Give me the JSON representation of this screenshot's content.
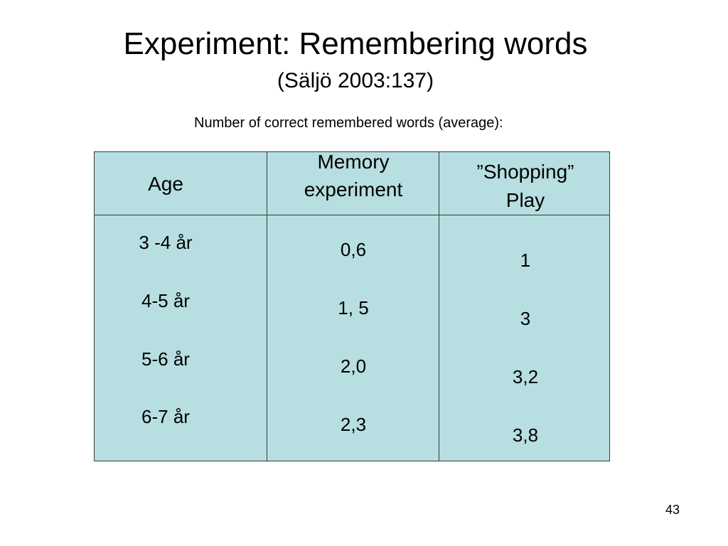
{
  "slide": {
    "title": "Experiment: Remembering words",
    "subtitle": "(Säljö 2003:137)",
    "caption": "Number of correct remembered words (average):",
    "page_number": "43"
  },
  "table": {
    "headers": {
      "age_line1": "Age",
      "memory_line1": "Memory",
      "memory_line2": "experiment",
      "shopping_line1": "”Shopping”",
      "shopping_line2": "Play"
    },
    "rows": [
      {
        "age": "3 -4 år",
        "memory": "0,6",
        "shopping": "1"
      },
      {
        "age": "4-5 år",
        "memory": "1, 5",
        "shopping": "3"
      },
      {
        "age": "5-6 år",
        "memory": "2,0",
        "shopping": "3,2"
      },
      {
        "age": "6-7 år",
        "memory": "2,3",
        "shopping": "3,8"
      }
    ]
  },
  "colors": {
    "table_fill": "#b7dee0",
    "grid_line": "#3a3a3a"
  }
}
